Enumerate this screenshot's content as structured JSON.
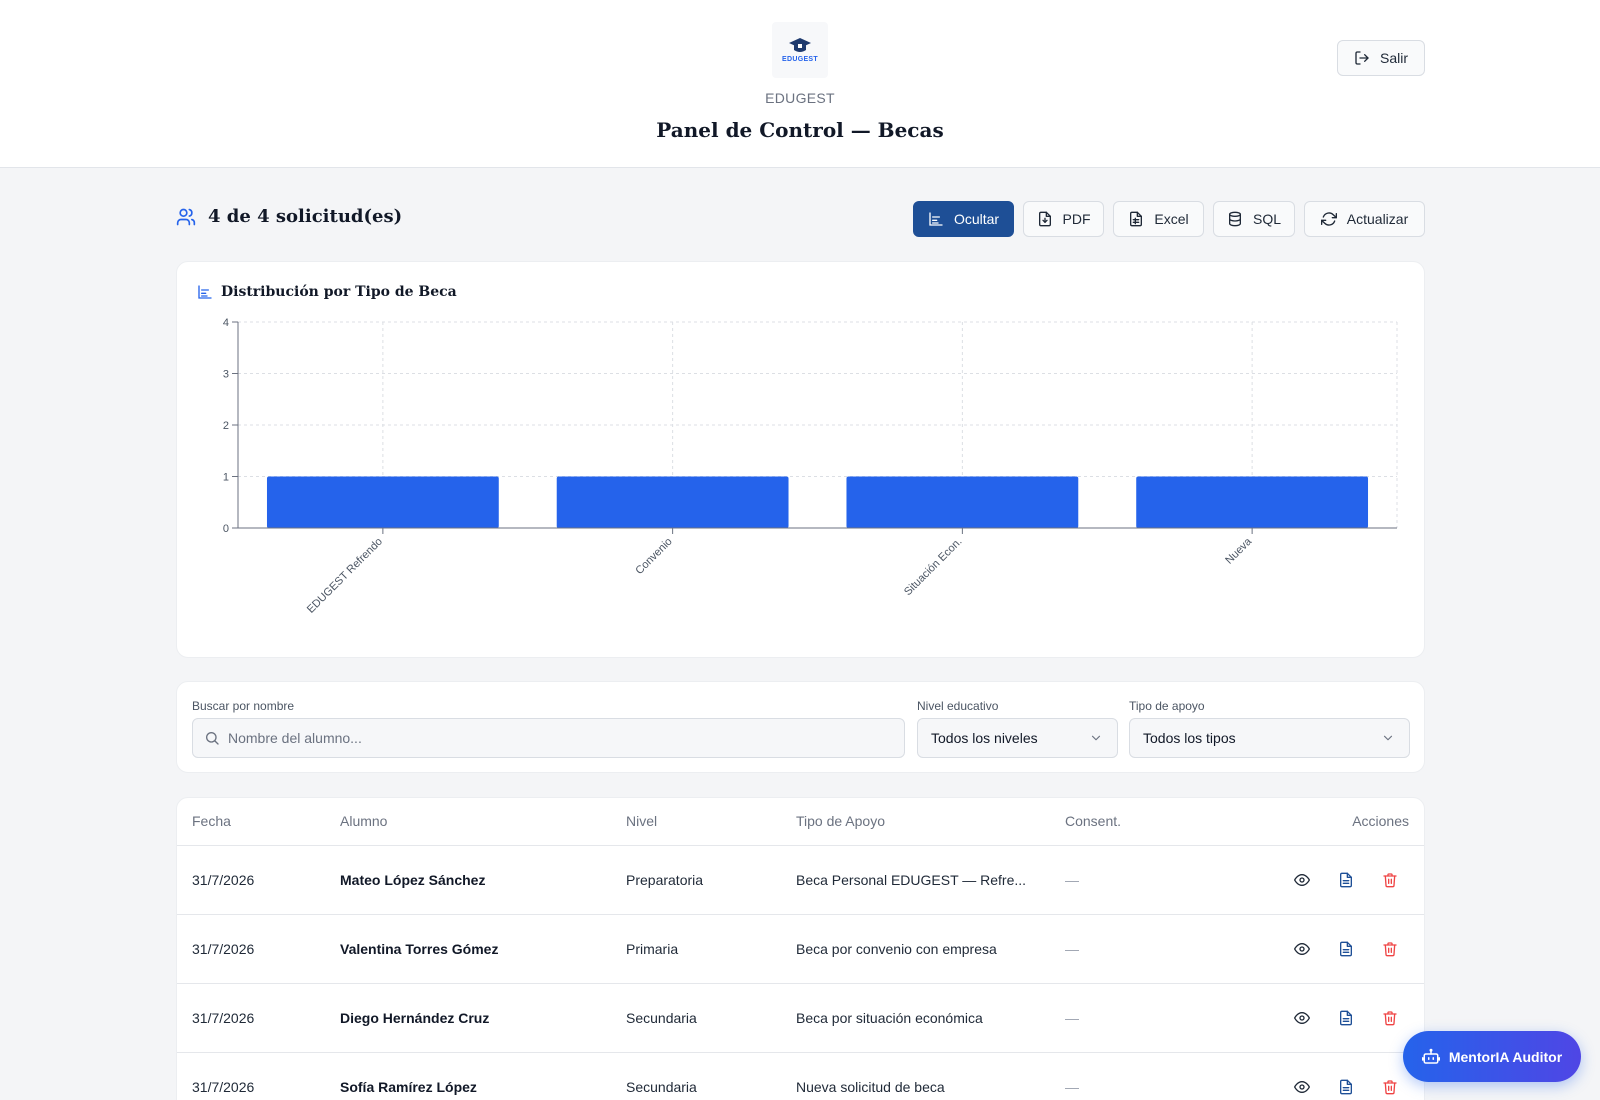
{
  "header": {
    "brand": "EDUGEST",
    "logo_text": "EDUGEST",
    "title": "Panel de Control — Becas",
    "exit_label": "Salir"
  },
  "summary": {
    "text": "4 de 4 solicitud(es)"
  },
  "toolbar": {
    "hide_label": "Ocultar",
    "pdf_label": "PDF",
    "excel_label": "Excel",
    "sql_label": "SQL",
    "refresh_label": "Actualizar"
  },
  "chart_data": {
    "type": "bar",
    "title": "Distribución por Tipo de Beca",
    "categories": [
      "EDUGEST Refrendo",
      "Convenio",
      "Situación Econ.",
      "Nueva"
    ],
    "values": [
      1,
      1,
      1,
      1
    ],
    "ylim": [
      0,
      4
    ],
    "yticks": [
      0,
      1,
      2,
      3,
      4
    ],
    "grid": true,
    "color": "#2563eb"
  },
  "filters": {
    "search_label": "Buscar por nombre",
    "search_placeholder": "Nombre del alumno...",
    "nivel_label": "Nivel educativo",
    "nivel_value": "Todos los niveles",
    "tipo_label": "Tipo de apoyo",
    "tipo_value": "Todos los tipos"
  },
  "table": {
    "headers": {
      "fecha": "Fecha",
      "alumno": "Alumno",
      "nivel": "Nivel",
      "tipo": "Tipo de Apoyo",
      "consent": "Consent.",
      "acciones": "Acciones"
    },
    "rows": [
      {
        "fecha": "31/7/2026",
        "alumno": "Mateo López Sánchez",
        "nivel": "Preparatoria",
        "tipo": "Beca Personal EDUGEST — Refre...",
        "consent": "—"
      },
      {
        "fecha": "31/7/2026",
        "alumno": "Valentina Torres Gómez",
        "nivel": "Primaria",
        "tipo": "Beca por convenio con empresa",
        "consent": "—"
      },
      {
        "fecha": "31/7/2026",
        "alumno": "Diego Hernández Cruz",
        "nivel": "Secundaria",
        "tipo": "Beca por situación económica",
        "consent": "—"
      },
      {
        "fecha": "31/7/2026",
        "alumno": "Sofía Ramírez López",
        "nivel": "Secundaria",
        "tipo": "Nueva solicitud de beca",
        "consent": "—"
      }
    ]
  },
  "assistant": {
    "label": "MentorIA Auditor"
  },
  "colors": {
    "primary": "#1e4f96",
    "bar": "#2563eb",
    "danger": "#ef4444",
    "accent_gradient_end": "#4f46e5"
  }
}
